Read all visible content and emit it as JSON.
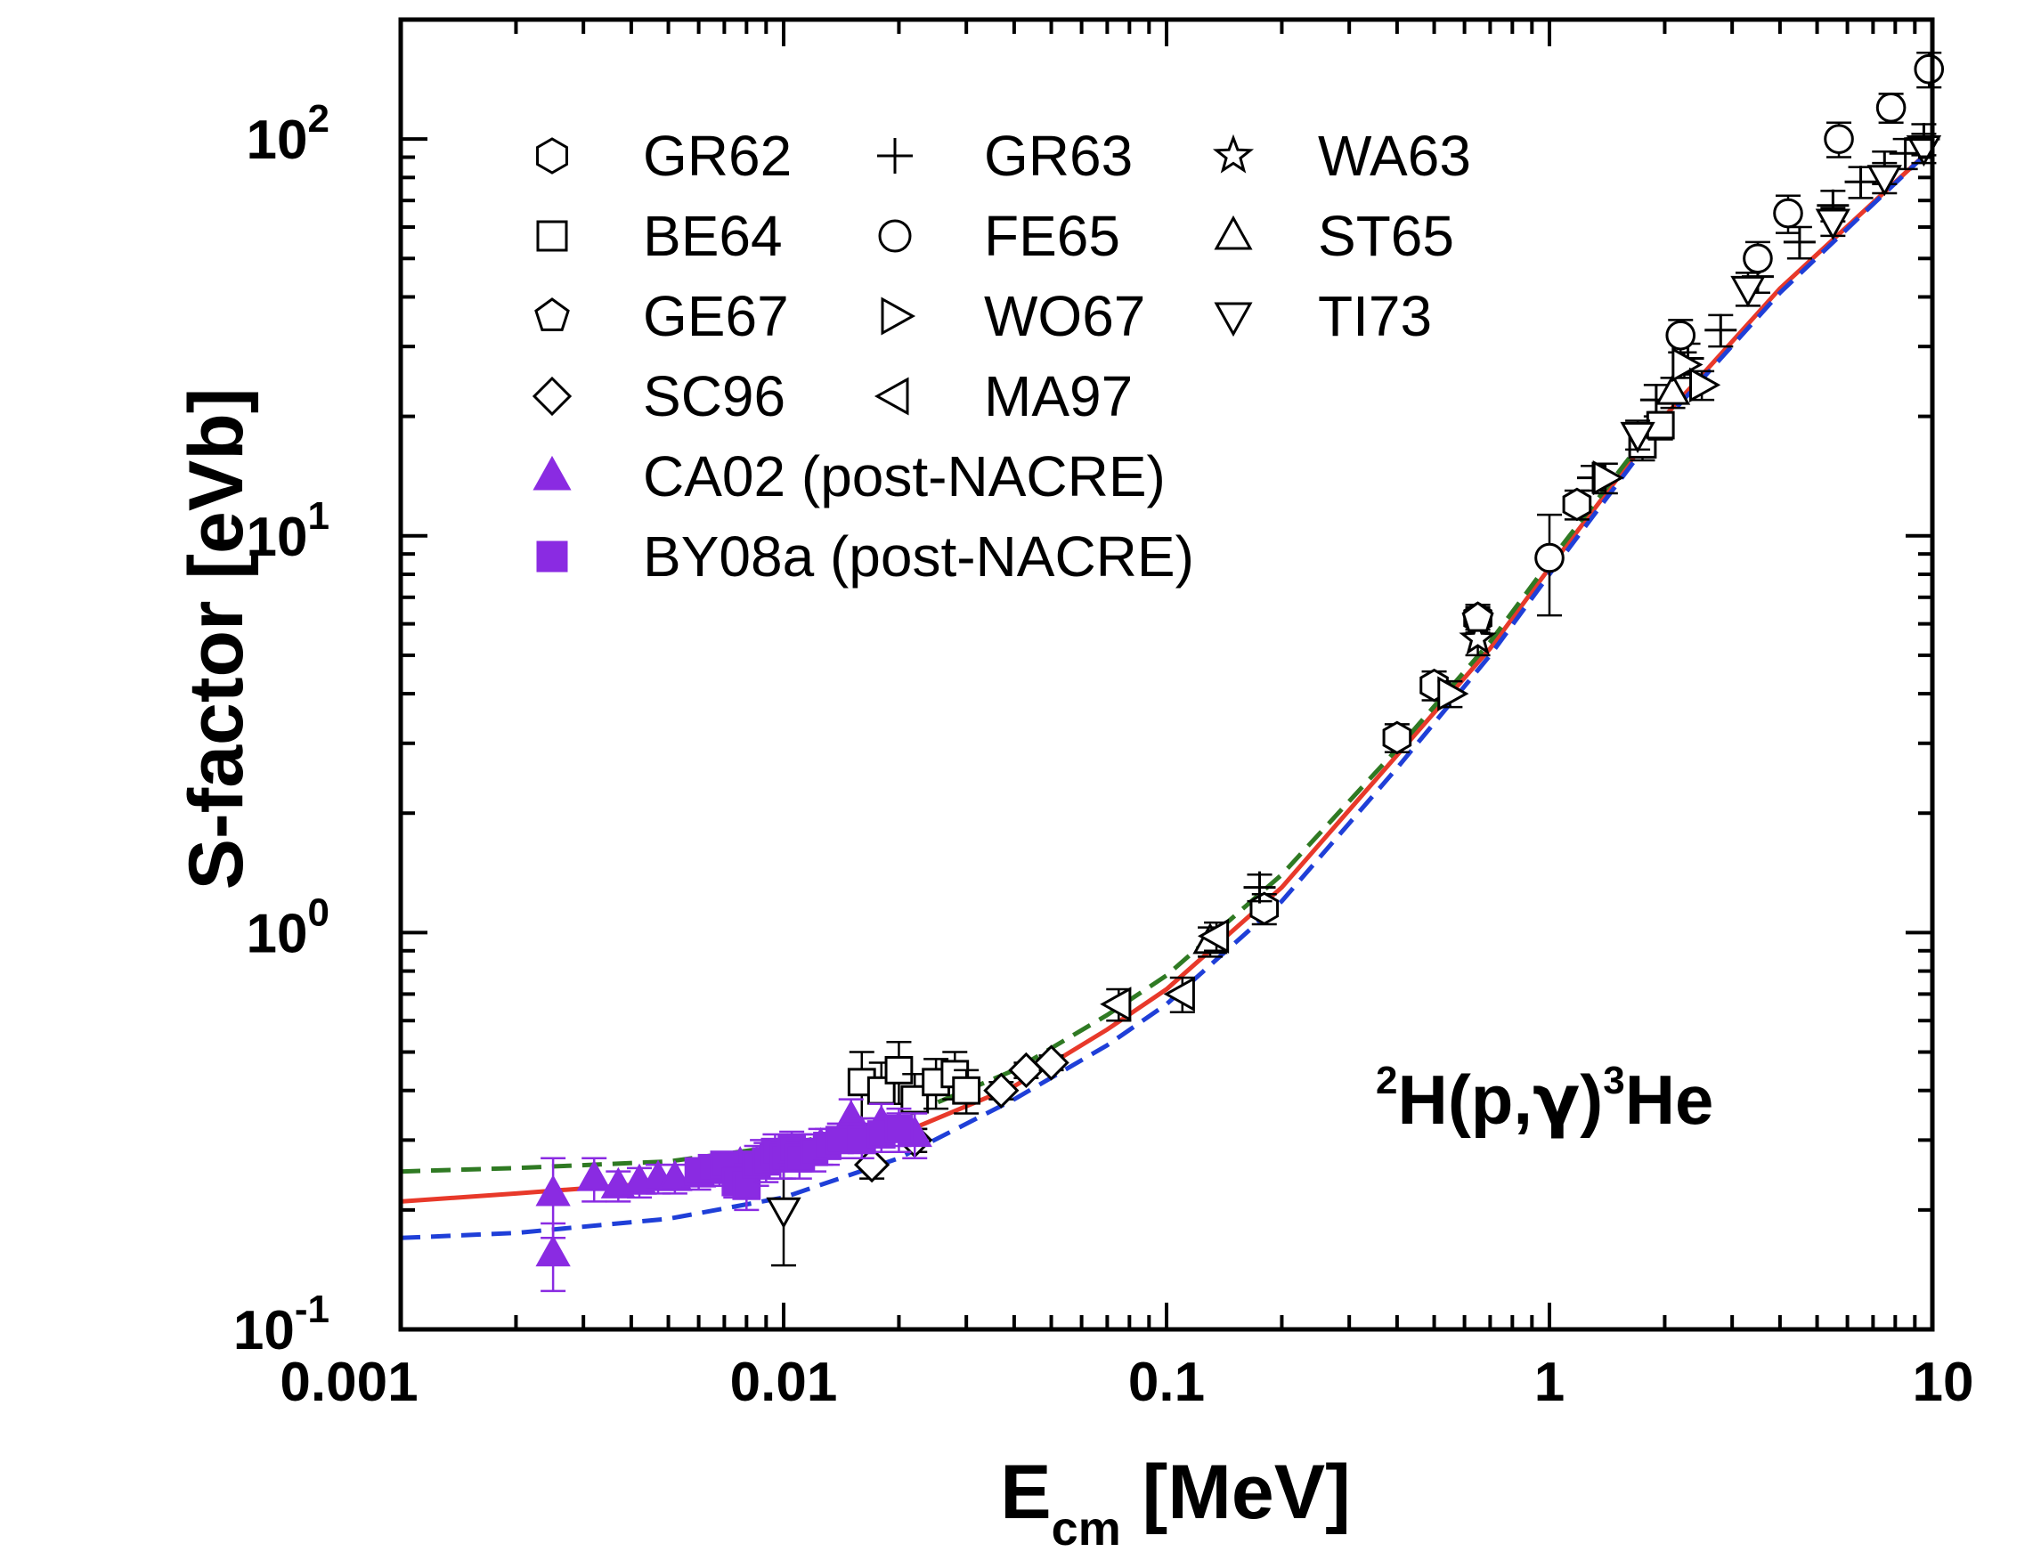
{
  "chart_data": {
    "type": "scatter",
    "title": "",
    "xlabel": "E",
    "xlabel_sub": "cm",
    "xlabel_unit": " [MeV]",
    "ylabel": "S-factor [eVb]",
    "x_scale": "log",
    "y_scale": "log",
    "xlim": [
      0.001,
      10
    ],
    "ylim": [
      0.1,
      200
    ],
    "grid": false,
    "legend_position": "top-left",
    "x_ticks": [
      {
        "value": 0.001,
        "label": "0.001"
      },
      {
        "value": 0.01,
        "label": "0.01"
      },
      {
        "value": 0.1,
        "label": "0.1"
      },
      {
        "value": 1,
        "label": "1"
      },
      {
        "value": 10,
        "label": "10"
      }
    ],
    "y_ticks": [
      {
        "value": 0.1,
        "base": "10",
        "exp": "-1"
      },
      {
        "value": 1,
        "base": "10",
        "exp": "0"
      },
      {
        "value": 10,
        "base": "10",
        "exp": "1"
      },
      {
        "value": 100,
        "base": "10",
        "exp": "2"
      }
    ],
    "annotation": {
      "mass1": "2",
      "part1": "H(p,",
      "gamma": "γ",
      "part2": ")",
      "mass2": "3",
      "part3": "He"
    },
    "curves": [
      {
        "style": "solid",
        "color": "#e8392a",
        "points": [
          [
            0.001,
            0.21
          ],
          [
            0.002,
            0.22
          ],
          [
            0.005,
            0.235
          ],
          [
            0.01,
            0.26
          ],
          [
            0.02,
            0.31
          ],
          [
            0.04,
            0.41
          ],
          [
            0.07,
            0.57
          ],
          [
            0.1,
            0.72
          ],
          [
            0.2,
            1.3
          ],
          [
            0.4,
            2.8
          ],
          [
            0.7,
            5.2
          ],
          [
            1,
            8.3
          ],
          [
            2,
            20
          ],
          [
            4,
            42
          ],
          [
            10,
            95
          ]
        ]
      },
      {
        "style": "dashed",
        "color": "#2f7a23",
        "points": [
          [
            0.001,
            0.25
          ],
          [
            0.002,
            0.255
          ],
          [
            0.005,
            0.265
          ],
          [
            0.01,
            0.29
          ],
          [
            0.02,
            0.34
          ],
          [
            0.04,
            0.45
          ],
          [
            0.07,
            0.62
          ],
          [
            0.1,
            0.78
          ],
          [
            0.2,
            1.4
          ],
          [
            0.4,
            2.9
          ],
          [
            0.7,
            5.4
          ],
          [
            1,
            8.6
          ],
          [
            2,
            20.5
          ]
        ]
      },
      {
        "style": "dashed",
        "color": "#1f3fd8",
        "points": [
          [
            0.001,
            0.17
          ],
          [
            0.002,
            0.175
          ],
          [
            0.005,
            0.19
          ],
          [
            0.01,
            0.215
          ],
          [
            0.02,
            0.27
          ],
          [
            0.04,
            0.38
          ],
          [
            0.07,
            0.52
          ],
          [
            0.1,
            0.66
          ],
          [
            0.2,
            1.2
          ],
          [
            0.4,
            2.6
          ],
          [
            0.7,
            5.0
          ],
          [
            1,
            8.0
          ],
          [
            2,
            19.5
          ],
          [
            4,
            41
          ],
          [
            10,
            95
          ]
        ]
      }
    ],
    "series": [
      {
        "name": "GR62",
        "marker": "hexagon",
        "filled": false,
        "points": [
          [
            0.18,
            1.15,
            0.1
          ],
          [
            0.4,
            3.1,
            0.25
          ],
          [
            0.5,
            4.2,
            0.35
          ],
          [
            0.65,
            6.2,
            0.5
          ],
          [
            1.18,
            12,
            1
          ]
        ]
      },
      {
        "name": "GR63",
        "marker": "plus",
        "filled": false,
        "points": [
          [
            0.175,
            1.3,
            0.1
          ],
          [
            1.3,
            14,
            1
          ],
          [
            1.9,
            22,
            2
          ],
          [
            2.3,
            28,
            2.5
          ],
          [
            2.8,
            33,
            3
          ],
          [
            3.5,
            45,
            4
          ],
          [
            4.5,
            55,
            5
          ],
          [
            5.5,
            68,
            6
          ],
          [
            6.5,
            78,
            7
          ],
          [
            7.5,
            85,
            8
          ],
          [
            8.5,
            92,
            8
          ],
          [
            9.5,
            100,
            9
          ]
        ]
      },
      {
        "name": "WA63",
        "marker": "star",
        "filled": false,
        "points": [
          [
            0.65,
            5.5,
            0.5
          ]
        ]
      },
      {
        "name": "BE64",
        "marker": "square",
        "filled": false,
        "points": [
          [
            0.016,
            0.42,
            0.08
          ],
          [
            0.018,
            0.4,
            0.07
          ],
          [
            0.02,
            0.45,
            0.08
          ],
          [
            0.022,
            0.38,
            0.06
          ],
          [
            0.025,
            0.42,
            0.06
          ],
          [
            0.028,
            0.44,
            0.06
          ],
          [
            0.03,
            0.4,
            0.05
          ],
          [
            1.75,
            17,
            1.5
          ],
          [
            1.95,
            19,
            1.5
          ]
        ]
      },
      {
        "name": "FE65",
        "marker": "circle",
        "filled": false,
        "points": [
          [
            1.0,
            8.8,
            2.5
          ],
          [
            2.2,
            32,
            3
          ],
          [
            3.5,
            50,
            5
          ],
          [
            4.2,
            65,
            7
          ],
          [
            5.7,
            100,
            10
          ],
          [
            7.8,
            120,
            10
          ],
          [
            9.8,
            150,
            15
          ]
        ]
      },
      {
        "name": "ST65",
        "marker": "triangle-up",
        "filled": false,
        "points": [
          [
            0.13,
            0.95,
            0.08
          ],
          [
            2.1,
            23,
            2
          ]
        ]
      },
      {
        "name": "GE67",
        "marker": "pentagon",
        "filled": false,
        "points": [
          [
            0.65,
            6.2,
            0.4
          ]
        ]
      },
      {
        "name": "WO67",
        "marker": "triangle-right",
        "filled": false,
        "points": [
          [
            0.55,
            4.0,
            0.3
          ],
          [
            1.4,
            14,
            1.2
          ],
          [
            2.25,
            27,
            2
          ],
          [
            2.5,
            24,
            2
          ]
        ]
      },
      {
        "name": "TI73",
        "marker": "triangle-down",
        "filled": false,
        "points": [
          [
            0.01,
            0.2,
            0.055
          ],
          [
            1.7,
            18,
            1.5
          ],
          [
            3.3,
            42,
            4
          ],
          [
            5.5,
            62,
            5
          ],
          [
            7.5,
            80,
            7
          ],
          [
            9.5,
            95,
            8
          ]
        ]
      },
      {
        "name": "SC96",
        "marker": "diamond",
        "filled": false,
        "points": [
          [
            0.017,
            0.26,
            0.02
          ],
          [
            0.022,
            0.3,
            0.02
          ],
          [
            0.037,
            0.4,
            0.02
          ],
          [
            0.043,
            0.45,
            0.02
          ],
          [
            0.05,
            0.47,
            0.02
          ]
        ]
      },
      {
        "name": "MA97",
        "marker": "triangle-left",
        "filled": false,
        "points": [
          [
            0.075,
            0.66,
            0.06
          ],
          [
            0.11,
            0.7,
            0.07
          ],
          [
            0.135,
            0.98,
            0.08
          ]
        ]
      },
      {
        "name": "CA02",
        "name_suffix": "  (post-NACRE)",
        "marker": "triangle-up",
        "filled": true,
        "color": "#8a2be2",
        "points": [
          [
            0.0025,
            0.22,
            0.05
          ],
          [
            0.0025,
            0.155,
            0.03
          ],
          [
            0.0032,
            0.24,
            0.03
          ],
          [
            0.0037,
            0.23,
            0.02
          ],
          [
            0.0042,
            0.235,
            0.02
          ],
          [
            0.0047,
            0.24,
            0.02
          ],
          [
            0.0052,
            0.24,
            0.02
          ],
          [
            0.006,
            0.245,
            0.02
          ],
          [
            0.0068,
            0.25,
            0.02
          ],
          [
            0.0077,
            0.26,
            0.02
          ],
          [
            0.0088,
            0.27,
            0.03
          ],
          [
            0.0098,
            0.27,
            0.03
          ],
          [
            0.011,
            0.28,
            0.03
          ],
          [
            0.0125,
            0.29,
            0.03
          ],
          [
            0.014,
            0.3,
            0.03
          ],
          [
            0.015,
            0.34,
            0.04
          ],
          [
            0.016,
            0.31,
            0.03
          ],
          [
            0.018,
            0.33,
            0.04
          ],
          [
            0.02,
            0.32,
            0.04
          ],
          [
            0.022,
            0.31,
            0.04
          ]
        ]
      },
      {
        "name": "BY08a",
        "name_suffix": " (post-NACRE)",
        "marker": "square",
        "filled": true,
        "color": "#8a2be2",
        "points": [
          [
            0.006,
            0.25,
            0.02
          ],
          [
            0.0065,
            0.255,
            0.02
          ],
          [
            0.007,
            0.26,
            0.02
          ],
          [
            0.0075,
            0.235,
            0.02
          ],
          [
            0.008,
            0.23,
            0.03
          ],
          [
            0.0085,
            0.26,
            0.03
          ],
          [
            0.009,
            0.265,
            0.03
          ],
          [
            0.0095,
            0.28,
            0.03
          ],
          [
            0.01,
            0.27,
            0.03
          ],
          [
            0.0105,
            0.285,
            0.03
          ],
          [
            0.011,
            0.27,
            0.03
          ],
          [
            0.012,
            0.28,
            0.03
          ],
          [
            0.013,
            0.29,
            0.03
          ],
          [
            0.014,
            0.3,
            0.03
          ],
          [
            0.016,
            0.3,
            0.03
          ],
          [
            0.018,
            0.31,
            0.03
          ],
          [
            0.02,
            0.32,
            0.03
          ]
        ]
      }
    ]
  }
}
